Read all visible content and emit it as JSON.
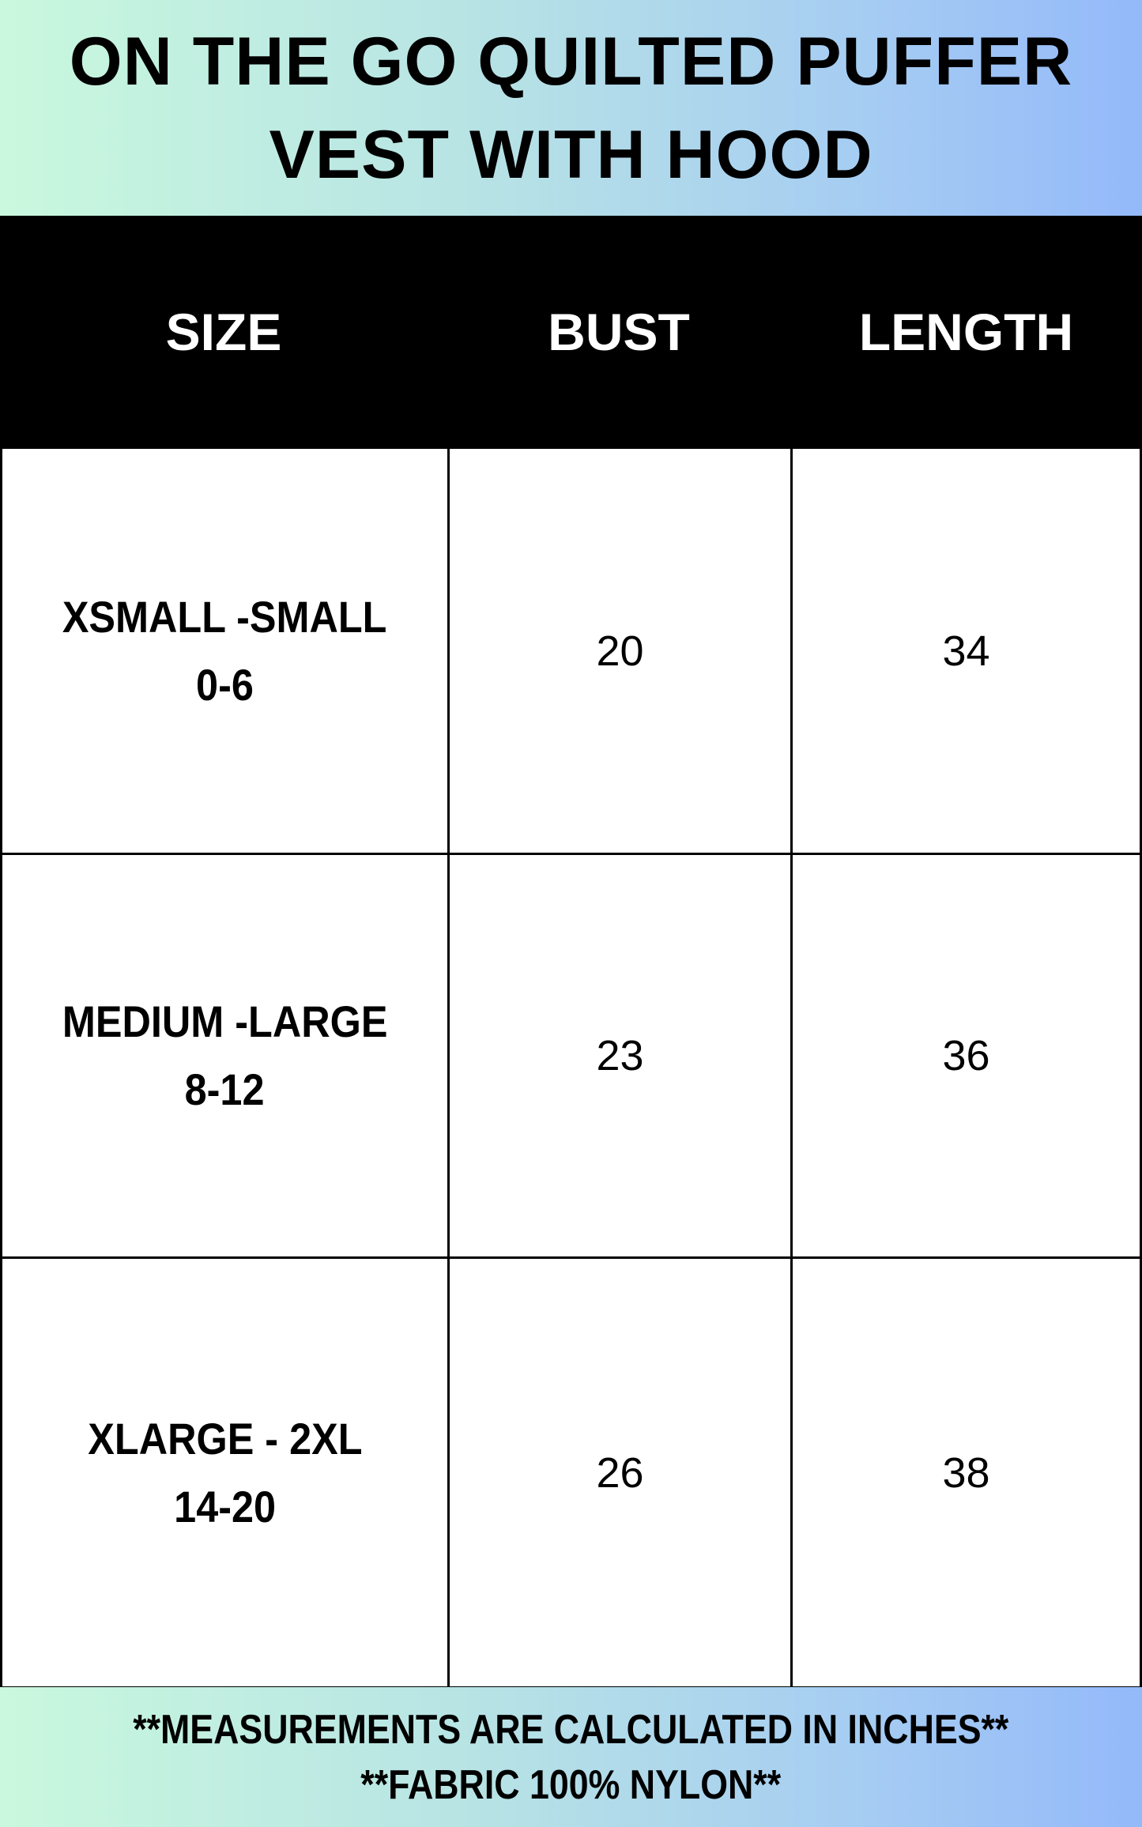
{
  "title": {
    "line1": "ON THE GO QUILTED PUFFER",
    "line2": "VEST WITH HOOD"
  },
  "table": {
    "headers": [
      "SIZE",
      "BUST",
      "LENGTH"
    ],
    "rows": [
      {
        "size": "XSMALL -SMALL",
        "range": "0-6",
        "bust": "20",
        "length": "34"
      },
      {
        "size": "MEDIUM -LARGE",
        "range": "8-12",
        "bust": "23",
        "length": "36"
      },
      {
        "size": "XLARGE - 2XL",
        "range": "14-20",
        "bust": "26",
        "length": "38"
      }
    ]
  },
  "footer": {
    "line1": "**MEASUREMENTS ARE CALCULATED IN INCHES**",
    "line2": "**FABRIC 100% NYLON**"
  },
  "colors": {
    "gradient_start": "#c9f8de",
    "gradient_end": "#94b9fa",
    "header_bg": "#000000"
  }
}
